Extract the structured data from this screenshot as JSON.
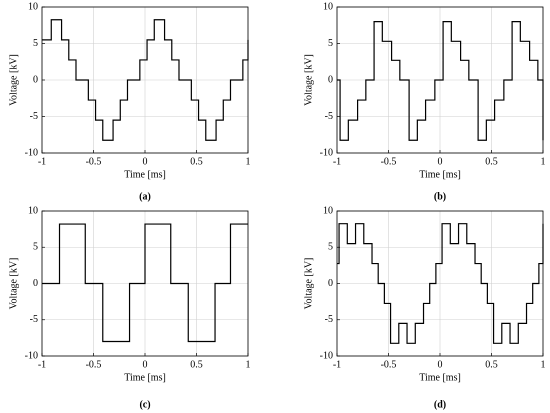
{
  "chart_data": [
    {
      "type": "line",
      "step": "post",
      "caption": "(a)",
      "xlabel": "Time [ms]",
      "ylabel": "Voltage [kV]",
      "grid": true,
      "color": "#000000",
      "xlim": [
        -1,
        1
      ],
      "ylim": [
        -10,
        10
      ],
      "xticks": [
        -1,
        -0.5,
        0,
        0.5,
        1
      ],
      "yticks": [
        -10,
        -5,
        0,
        5,
        10
      ],
      "x": [
        -1,
        -0.91,
        -0.81,
        -0.74,
        -0.67,
        -0.55,
        -0.48,
        -0.41,
        -0.31,
        -0.24,
        -0.17,
        -0.05,
        0.02,
        0.09,
        0.19,
        0.26,
        0.33,
        0.45,
        0.52,
        0.59,
        0.69,
        0.76,
        0.83,
        0.95,
        1
      ],
      "values": [
        5.5,
        8.25,
        5.5,
        2.75,
        0,
        -2.75,
        -5.5,
        -8.25,
        -5.5,
        -2.75,
        0,
        2.75,
        5.5,
        8.25,
        5.5,
        2.75,
        0,
        -2.75,
        -5.5,
        -8.25,
        -5.5,
        -2.75,
        0,
        2.75,
        5.5
      ]
    },
    {
      "type": "line",
      "step": "post",
      "caption": "(b)",
      "xlabel": "Time [ms]",
      "ylabel": "Voltage [kV]",
      "grid": true,
      "color": "#000000",
      "xlim": [
        -1,
        1
      ],
      "ylim": [
        -10,
        10
      ],
      "xticks": [
        -1,
        -0.5,
        0,
        0.5,
        1
      ],
      "yticks": [
        -10,
        -5,
        0,
        5,
        10
      ],
      "x": [
        -1,
        -0.97,
        -0.89,
        -0.8,
        -0.72,
        -0.64,
        -0.56,
        -0.47,
        -0.39,
        -0.3,
        -0.22,
        -0.14,
        -0.05,
        0.03,
        0.11,
        0.2,
        0.28,
        0.37,
        0.45,
        0.53,
        0.62,
        0.7,
        0.78,
        0.87,
        0.95,
        1
      ],
      "values": [
        0,
        -8.25,
        -5.5,
        -2.75,
        0,
        8,
        5.3,
        2.7,
        0,
        -8.25,
        -5.5,
        -2.75,
        0,
        8,
        5.3,
        2.7,
        0,
        -8.25,
        -5.5,
        -2.75,
        0,
        8,
        5.3,
        2.7,
        0,
        -8.25
      ]
    },
    {
      "type": "line",
      "step": "post",
      "caption": "(c)",
      "xlabel": "Time [ms]",
      "ylabel": "Voltage [kV]",
      "grid": true,
      "color": "#000000",
      "xlim": [
        -1,
        1
      ],
      "ylim": [
        -10,
        10
      ],
      "xticks": [
        -1,
        -0.5,
        0,
        0.5,
        1
      ],
      "yticks": [
        -10,
        -5,
        0,
        5,
        10
      ],
      "x": [
        -1,
        -0.83,
        -0.58,
        -0.41,
        -0.15,
        0,
        0.25,
        0.42,
        0.68,
        0.83,
        1
      ],
      "values": [
        0,
        8.2,
        0,
        -8,
        0,
        8.2,
        0,
        -8,
        0,
        8.2,
        8.2
      ]
    },
    {
      "type": "line",
      "step": "post",
      "caption": "(d)",
      "xlabel": "Time [ms]",
      "ylabel": "Voltage [kV]",
      "grid": true,
      "color": "#000000",
      "xlim": [
        -1,
        1
      ],
      "ylim": [
        -10,
        10
      ],
      "xticks": [
        -1,
        -0.5,
        0,
        0.5,
        1
      ],
      "yticks": [
        -10,
        -5,
        0,
        5,
        10
      ],
      "x": [
        -1,
        -0.98,
        -0.9,
        -0.82,
        -0.74,
        -0.66,
        -0.6,
        -0.54,
        -0.48,
        -0.4,
        -0.32,
        -0.24,
        -0.16,
        -0.1,
        -0.04,
        0.02,
        0.1,
        0.18,
        0.26,
        0.34,
        0.4,
        0.46,
        0.52,
        0.6,
        0.68,
        0.76,
        0.84,
        0.9,
        0.96,
        1
      ],
      "values": [
        2.75,
        8.25,
        5.5,
        8.25,
        5.5,
        2.75,
        0,
        -2.75,
        -8.25,
        -5.5,
        -8.25,
        -5.5,
        -2.75,
        0,
        2.75,
        8.25,
        5.5,
        8.25,
        5.5,
        2.75,
        0,
        -2.75,
        -8.25,
        -5.5,
        -8.25,
        -5.5,
        -2.75,
        0,
        2.75,
        8.25
      ]
    }
  ]
}
